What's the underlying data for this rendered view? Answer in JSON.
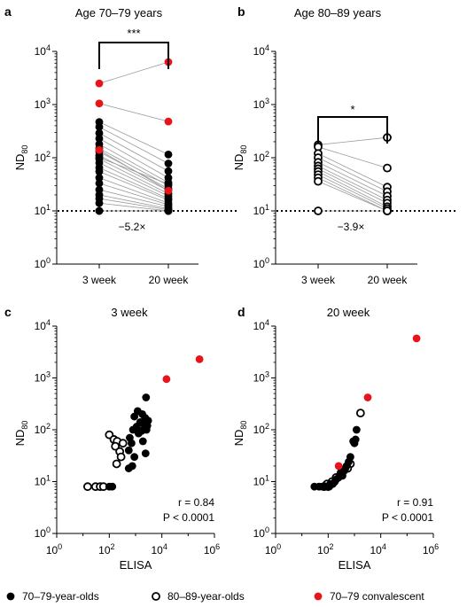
{
  "colors": {
    "black": "#000000",
    "convalescent": "#e8141b",
    "connector": "#9a9a9a"
  },
  "legend": [
    {
      "label": "70–79-year-olds",
      "marker": "filled-black"
    },
    {
      "label": "80–89-year-olds",
      "marker": "open-black"
    },
    {
      "label": "70–79 convalescent",
      "marker": "filled-red"
    }
  ],
  "chart_data": [
    {
      "panel": "a",
      "type": "scatter",
      "title": "Age 70–79 years",
      "ylabel": "ND80",
      "y_scale": "log10",
      "ylim": [
        1,
        10000
      ],
      "y_ticks": [
        "10^0",
        "10^1",
        "10^2",
        "10^3",
        "10^4"
      ],
      "categories": [
        "3 week",
        "20 week"
      ],
      "threshold_line": 10,
      "annotation": "−5.2×",
      "significance": "***",
      "pairs_black": [
        [
          470,
          115
        ],
        [
          380,
          78
        ],
        [
          290,
          56
        ],
        [
          230,
          42
        ],
        [
          180,
          34
        ],
        [
          150,
          30
        ],
        [
          130,
          26
        ],
        [
          110,
          24
        ],
        [
          95,
          21
        ],
        [
          80,
          19
        ],
        [
          65,
          17
        ],
        [
          55,
          16
        ],
        [
          42,
          14
        ],
        [
          33,
          13
        ],
        [
          25,
          12
        ],
        [
          20,
          11
        ],
        [
          17,
          10.5
        ],
        [
          14,
          10
        ],
        [
          10,
          10
        ],
        [
          10,
          10
        ],
        [
          100,
          32
        ]
      ],
      "pairs_red": [
        [
          2500,
          6300
        ],
        [
          1050,
          480
        ],
        [
          140,
          24
        ]
      ]
    },
    {
      "panel": "b",
      "type": "scatter",
      "title": "Age 80–89 years",
      "ylabel": "ND80",
      "y_scale": "log10",
      "ylim": [
        1,
        10000
      ],
      "y_ticks": [
        "10^0",
        "10^1",
        "10^2",
        "10^3",
        "10^4"
      ],
      "categories": [
        "3 week",
        "20 week"
      ],
      "threshold_line": 10,
      "annotation": "−3.9×",
      "significance": "*",
      "pairs_open": [
        [
          175,
          240
        ],
        [
          160,
          64
        ],
        [
          120,
          28
        ],
        [
          100,
          23
        ],
        [
          82,
          19
        ],
        [
          70,
          16
        ],
        [
          62,
          14
        ],
        [
          55,
          12
        ],
        [
          48,
          11
        ],
        [
          42,
          10
        ],
        [
          36,
          10
        ],
        [
          10,
          10
        ]
      ]
    },
    {
      "panel": "c",
      "type": "scatter",
      "title": "3 week",
      "xlabel": "ELISA",
      "ylabel": "ND80",
      "x_scale": "log10",
      "y_scale": "log10",
      "xlim": [
        1,
        1000000
      ],
      "ylim": [
        1,
        10000
      ],
      "x_ticks": [
        "10^0",
        "10^2",
        "10^4",
        "10^6"
      ],
      "y_ticks": [
        "10^0",
        "10^1",
        "10^2",
        "10^3",
        "10^4"
      ],
      "stats": {
        "r": "r = 0.84",
        "p": "P < 0.0001"
      },
      "points_black": [
        [
          2500,
          420
        ],
        [
          1200,
          230
        ],
        [
          1800,
          200
        ],
        [
          2300,
          170
        ],
        [
          3000,
          150
        ],
        [
          1500,
          140
        ],
        [
          2000,
          130
        ],
        [
          2800,
          120
        ],
        [
          1100,
          115
        ],
        [
          2600,
          100
        ],
        [
          900,
          180
        ],
        [
          1700,
          95
        ],
        [
          800,
          100
        ],
        [
          1300,
          85
        ],
        [
          600,
          70
        ],
        [
          700,
          55
        ],
        [
          550,
          40
        ],
        [
          1900,
          60
        ],
        [
          2400,
          35
        ],
        [
          900,
          30
        ],
        [
          750,
          20
        ],
        [
          550,
          18
        ],
        [
          130,
          8
        ],
        [
          100,
          8
        ]
      ],
      "points_open": [
        [
          100,
          80
        ],
        [
          150,
          65
        ],
        [
          200,
          60
        ],
        [
          330,
          55
        ],
        [
          170,
          48
        ],
        [
          250,
          38
        ],
        [
          280,
          30
        ],
        [
          190,
          22
        ],
        [
          15,
          8
        ],
        [
          30,
          8
        ],
        [
          45,
          8
        ],
        [
          60,
          8
        ]
      ],
      "points_red": [
        [
          270000,
          2300
        ],
        [
          15000,
          950
        ]
      ]
    },
    {
      "panel": "d",
      "type": "scatter",
      "title": "20 week",
      "xlabel": "ELISA",
      "ylabel": "ND80",
      "x_scale": "log10",
      "y_scale": "log10",
      "xlim": [
        1,
        1000000
      ],
      "ylim": [
        1,
        10000
      ],
      "x_ticks": [
        "10^0",
        "10^2",
        "10^4",
        "10^6"
      ],
      "y_ticks": [
        "10^0",
        "10^1",
        "10^2",
        "10^3",
        "10^4"
      ],
      "stats": {
        "r": "r = 0.91",
        "p": "P < 0.0001"
      },
      "points_black": [
        [
          1200,
          100
        ],
        [
          1100,
          65
        ],
        [
          1000,
          55
        ],
        [
          900,
          60
        ],
        [
          700,
          30
        ],
        [
          600,
          24
        ],
        [
          500,
          20
        ],
        [
          450,
          18
        ],
        [
          400,
          16
        ],
        [
          300,
          15
        ],
        [
          350,
          13
        ],
        [
          250,
          12
        ],
        [
          200,
          11
        ],
        [
          180,
          10
        ],
        [
          150,
          9
        ],
        [
          120,
          9
        ],
        [
          100,
          8
        ],
        [
          80,
          8
        ],
        [
          60,
          8
        ],
        [
          45,
          8
        ],
        [
          30,
          8
        ],
        [
          110,
          8
        ]
      ],
      "points_open": [
        [
          1700,
          210
        ],
        [
          700,
          22
        ],
        [
          550,
          18
        ],
        [
          300,
          14
        ],
        [
          200,
          12
        ],
        [
          140,
          10
        ],
        [
          90,
          9
        ],
        [
          70,
          8
        ],
        [
          100,
          8
        ]
      ],
      "points_red": [
        [
          230000,
          5800
        ],
        [
          3200,
          420
        ],
        [
          250,
          20
        ]
      ]
    }
  ]
}
